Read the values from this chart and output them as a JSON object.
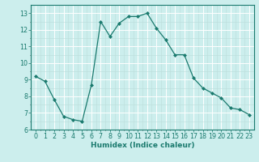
{
  "x": [
    0,
    1,
    2,
    3,
    4,
    5,
    6,
    7,
    8,
    9,
    10,
    11,
    12,
    13,
    14,
    15,
    16,
    17,
    18,
    19,
    20,
    21,
    22,
    23
  ],
  "y": [
    9.2,
    8.9,
    7.8,
    6.8,
    6.6,
    6.5,
    8.7,
    12.5,
    11.6,
    12.4,
    12.8,
    12.8,
    13.0,
    12.1,
    11.4,
    10.5,
    10.5,
    9.1,
    8.5,
    8.2,
    7.9,
    7.3,
    7.2,
    6.9
  ],
  "line_color": "#1a7a6e",
  "marker": "D",
  "marker_size": 2.0,
  "bg_color": "#cceeed",
  "grid_color_major": "#ffffff",
  "grid_color_minor": "#bbdddb",
  "xlabel": "Humidex (Indice chaleur)",
  "xlabel_fontsize": 6.5,
  "tick_fontsize": 5.8,
  "ylim": [
    6,
    13.5
  ],
  "xlim": [
    -0.5,
    23.5
  ],
  "yticks": [
    6,
    7,
    8,
    9,
    10,
    11,
    12,
    13
  ],
  "xticks": [
    0,
    1,
    2,
    3,
    4,
    5,
    6,
    7,
    8,
    9,
    10,
    11,
    12,
    13,
    14,
    15,
    16,
    17,
    18,
    19,
    20,
    21,
    22,
    23
  ]
}
